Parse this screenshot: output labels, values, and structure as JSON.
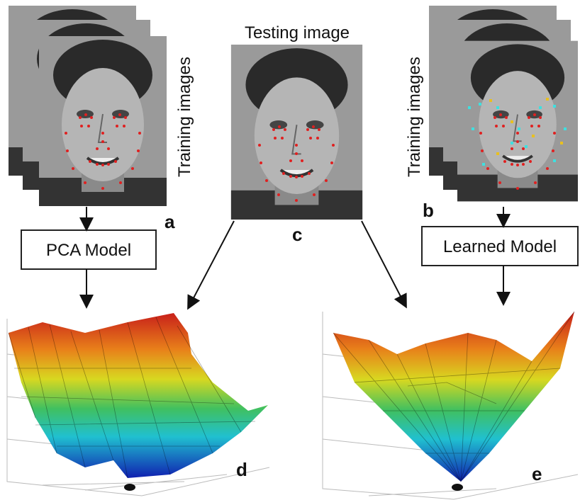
{
  "panels": {
    "left": {
      "side_label": "Training images",
      "letter": "a",
      "model": "PCA Model",
      "surface_letter": "d"
    },
    "center": {
      "title": "Testing image",
      "letter": "c"
    },
    "right": {
      "side_label": "Training images",
      "letter": "b",
      "model": "Learned Model",
      "surface_letter": "e"
    }
  }
}
